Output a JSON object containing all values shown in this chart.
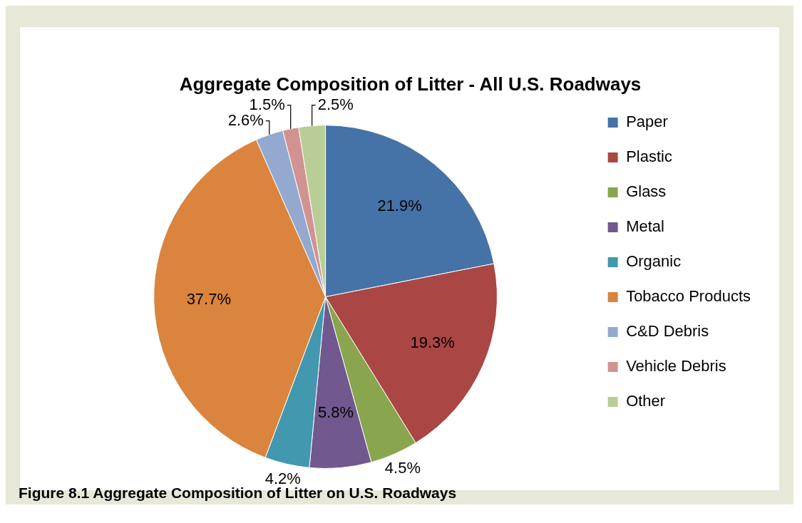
{
  "chart_data": {
    "type": "pie",
    "title": "Aggregate Composition of Litter - All U.S. Roadways",
    "categories": [
      "Paper",
      "Plastic",
      "Glass",
      "Metal",
      "Organic",
      "Tobacco Products",
      "C&D Debris",
      "Vehicle Debris",
      "Other"
    ],
    "values": [
      21.9,
      19.3,
      4.5,
      5.8,
      4.2,
      37.7,
      2.6,
      1.5,
      2.5
    ],
    "colors": [
      "#4572a7",
      "#aa4643",
      "#89a54e",
      "#71588f",
      "#4198af",
      "#db843d",
      "#93a9cf",
      "#d19392",
      "#b9cd96"
    ],
    "value_labels": [
      "21.9%",
      "19.3%",
      "4.5%",
      "5.8%",
      "4.2%",
      "37.7%",
      "2.6%",
      "1.5%",
      "2.5%"
    ],
    "legend": "right",
    "annotations": [
      "Figure 8.1 Aggregate Composition of Litter on U.S. Roadways"
    ]
  }
}
